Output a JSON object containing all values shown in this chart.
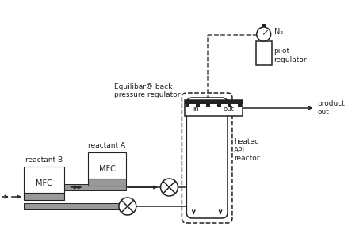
{
  "bg_color": "#ffffff",
  "line_color": "#222222",
  "dashed_color": "#444444",
  "gray_fill": "#999999",
  "text_color": "#222222",
  "fig_width": 4.44,
  "fig_height": 3.1,
  "labels": {
    "reactant_b": "reactant B",
    "reactant_a": "reactant A",
    "equilibibar": "Equilibar® back\npressure regulator",
    "heated_api": "heated\nAPI\nreactor",
    "pilot_reg": "pilot\nregulator",
    "n2": "N₂",
    "product_out": "product\nout",
    "mfc": "MFC",
    "in": "in",
    "out": "out"
  }
}
